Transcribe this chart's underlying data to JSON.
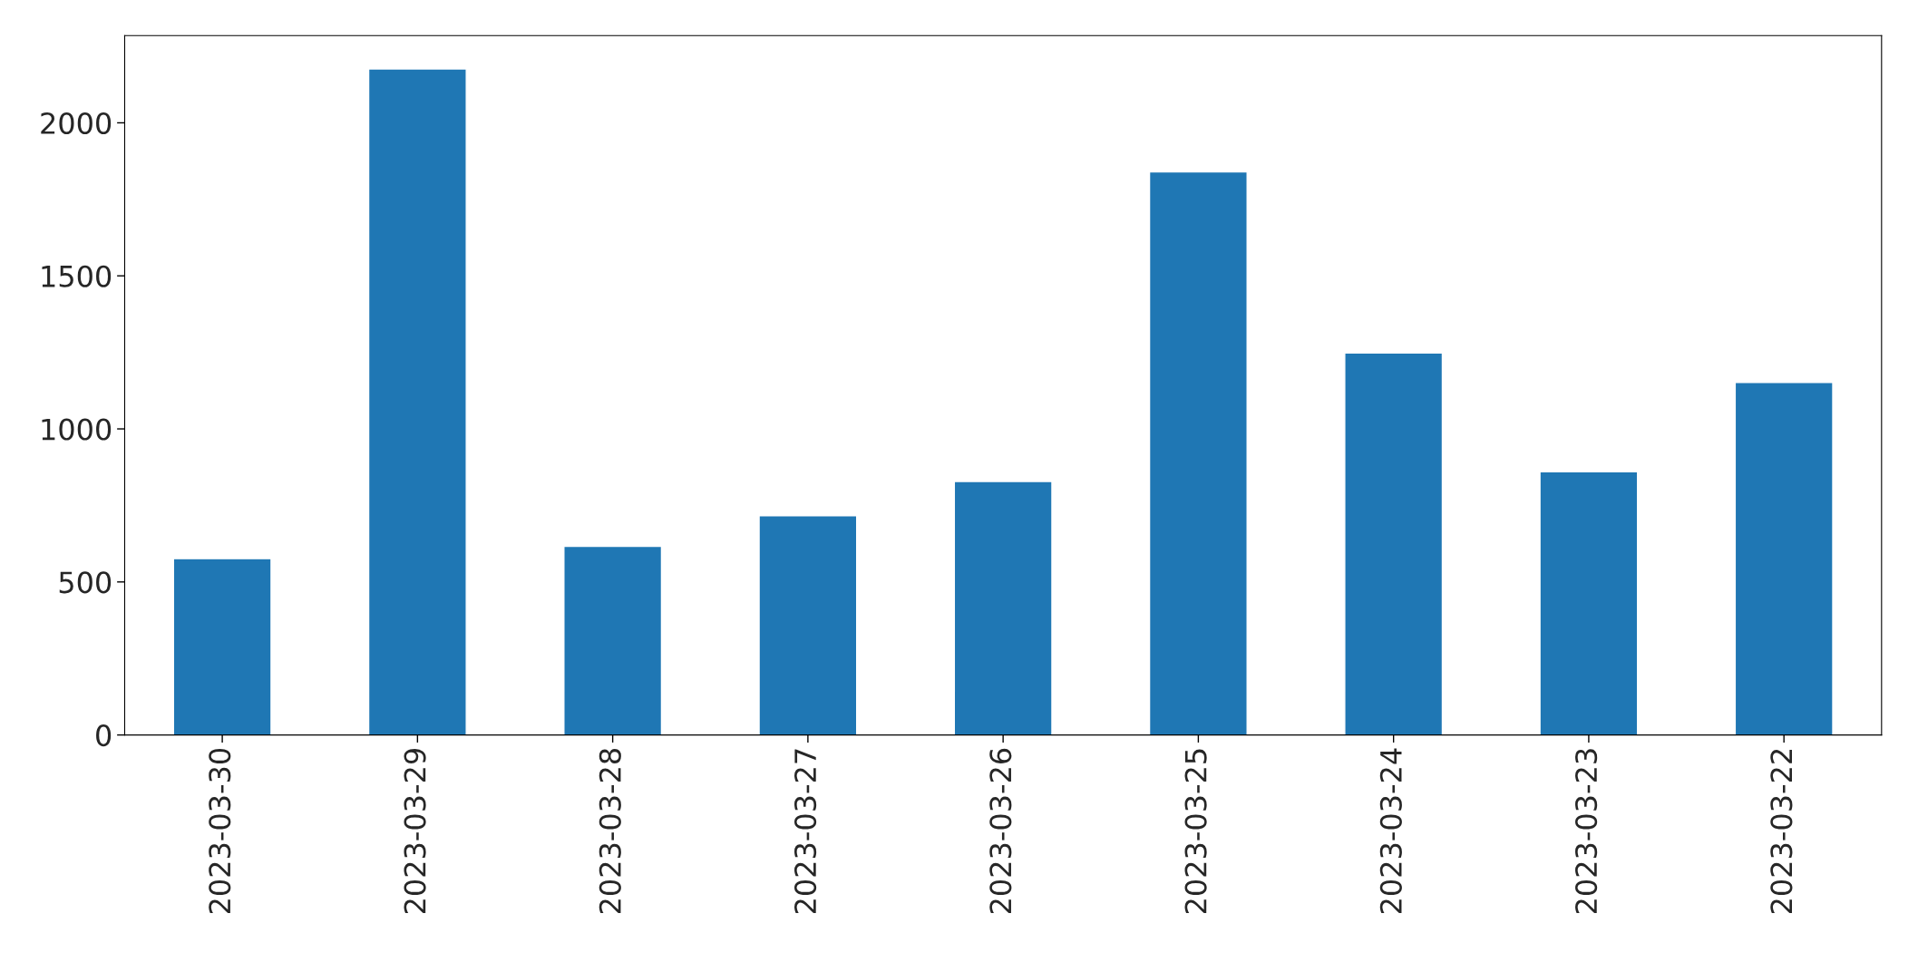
{
  "chart_data": {
    "type": "bar",
    "categories": [
      "2023-03-30",
      "2023-03-29",
      "2023-03-28",
      "2023-03-27",
      "2023-03-26",
      "2023-03-25",
      "2023-03-24",
      "2023-03-23",
      "2023-03-22"
    ],
    "values": [
      576,
      2176,
      616,
      716,
      828,
      1840,
      1248,
      860,
      1152
    ],
    "color": "#1f77b4",
    "ylim": [
      0,
      2285
    ],
    "yticks": [
      0,
      500,
      1000,
      1500,
      2000
    ],
    "grid": false
  }
}
